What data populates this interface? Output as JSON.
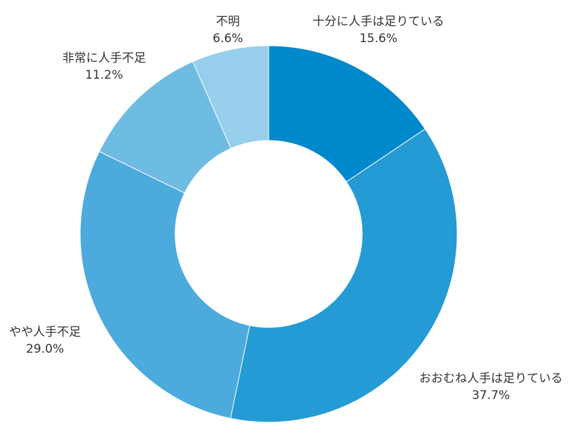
{
  "chart_data": {
    "type": "pie",
    "donut": true,
    "title": "",
    "slices": [
      {
        "name": "十分に人手は足りている",
        "value": 15.6,
        "label": "15.6%",
        "color": "#0088CC"
      },
      {
        "name": "おおむね人手は足りている",
        "value": 37.7,
        "label": "37.7%",
        "color": "#249BD4"
      },
      {
        "name": "やや人手不足",
        "value": 29.0,
        "label": "29.0%",
        "color": "#4CAADC"
      },
      {
        "name": "非常に人手不足",
        "value": 11.2,
        "label": "11.2%",
        "color": "#6EBCE2"
      },
      {
        "name": "不明",
        "value": 6.6,
        "label": "6.6%",
        "color": "#96CEEB"
      }
    ],
    "start_angle": "12 o'clock",
    "direction": "clockwise",
    "legend": "none"
  }
}
